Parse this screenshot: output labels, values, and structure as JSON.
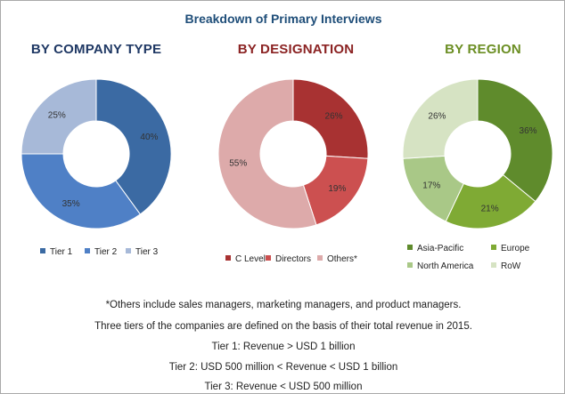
{
  "title": "Breakdown of Primary Interviews",
  "colors": {
    "tier1": "#3b6aa3",
    "tier2": "#4f80c6",
    "tier3": "#a7b9d8",
    "c_level": "#a83232",
    "directors": "#cc5050",
    "others": "#ddaaaa",
    "asia_pacific": "#5f8b2c",
    "europe": "#7faa34",
    "north_america": "#a9c887",
    "row": "#d6e3c3"
  },
  "chart_data": [
    {
      "type": "pie",
      "title": "BY COMPANY TYPE",
      "slices": [
        {
          "name": "Tier 1",
          "value": 40,
          "label": "40%",
          "color": "#3b6aa3"
        },
        {
          "name": "Tier 2",
          "value": 35,
          "label": "35%",
          "color": "#4f80c6"
        },
        {
          "name": "Tier 3",
          "value": 25,
          "label": "25%",
          "color": "#a7b9d8"
        }
      ]
    },
    {
      "type": "pie",
      "title": "BY DESIGNATION",
      "slices": [
        {
          "name": "C Level",
          "value": 26,
          "label": "26%",
          "color": "#a83232"
        },
        {
          "name": "Directors",
          "value": 19,
          "label": "19%",
          "color": "#cc5050"
        },
        {
          "name": "Others*",
          "value": 55,
          "label": "55%",
          "color": "#ddaaaa"
        }
      ]
    },
    {
      "type": "pie",
      "title": "BY REGION",
      "slices": [
        {
          "name": "Asia-Pacific",
          "value": 36,
          "label": "36%",
          "color": "#5f8b2c"
        },
        {
          "name": "Europe",
          "value": 21,
          "label": "21%",
          "color": "#7faa34"
        },
        {
          "name": "North America",
          "value": 17,
          "label": "17%",
          "color": "#a9c887"
        },
        {
          "name": "RoW",
          "value": 26,
          "label": "26%",
          "color": "#d6e3c3"
        }
      ]
    }
  ],
  "footnotes": [
    "*Others include sales managers, marketing managers, and product managers.",
    "Three tiers of the companies are defined on the basis of their total revenue in 2015.",
    "Tier 1: Revenue > USD 1 billion",
    "Tier 2: USD 500 million < Revenue < USD 1 billion",
    "Tier 3: Revenue < USD 500 million"
  ]
}
